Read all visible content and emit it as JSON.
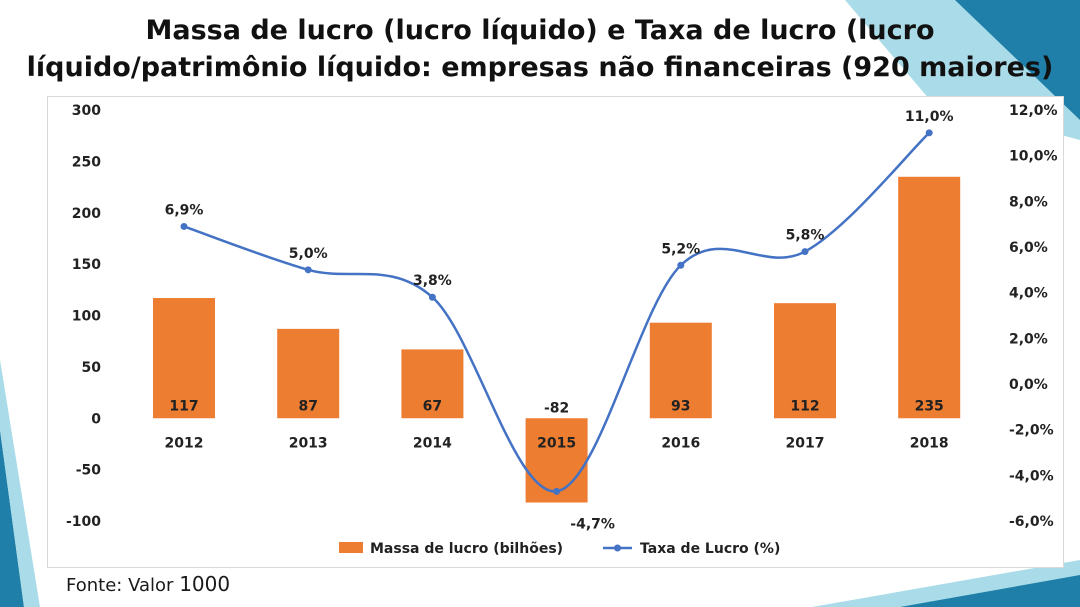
{
  "title_line1": "Massa de lucro (lucro líquido) e Taxa de lucro (lucro",
  "title_line2": "líquido/patrimônio líquido: empresas não financeiras (920 maiores)",
  "source_label": "Fonte:",
  "source_name": "Valor",
  "source_year": "1000",
  "colors": {
    "bar": "#ED7D31",
    "line": "#4472C4",
    "deco_dark": "#1F7FA8",
    "deco_light": "#A9DCE8"
  },
  "chart_data": {
    "type": "bar",
    "categories": [
      "2012",
      "2013",
      "2014",
      "2015",
      "2016",
      "2017",
      "2018"
    ],
    "series": [
      {
        "name": "Massa de lucro (bilhões)",
        "type": "bar",
        "axis": "left",
        "values": [
          117,
          87,
          67,
          -82,
          93,
          112,
          235
        ],
        "labels": [
          "117",
          "87",
          "67",
          "-82",
          "93",
          "112",
          "235"
        ]
      },
      {
        "name": "Taxa de Lucro (%)",
        "type": "line",
        "axis": "right",
        "smooth": true,
        "values": [
          6.9,
          5.0,
          3.8,
          -4.7,
          5.2,
          5.8,
          11.0
        ],
        "labels": [
          "6,9%",
          "5,0%",
          "3,8%",
          "-4,7%",
          "5,2%",
          "5,8%",
          "11,0%"
        ]
      }
    ],
    "y_left": {
      "lim": [
        -100,
        300
      ],
      "ticks": [
        300,
        250,
        200,
        150,
        100,
        50,
        0,
        -50,
        -100
      ],
      "tick_labels": [
        "300",
        "250",
        "200",
        "150",
        "100",
        "50",
        "0",
        "-50",
        "-100"
      ]
    },
    "y_right": {
      "lim": [
        -6,
        12
      ],
      "ticks": [
        12,
        10,
        8,
        6,
        4,
        2,
        0,
        -2,
        -4,
        -6
      ],
      "tick_labels": [
        "12,0%",
        "10,0%",
        "8,0%",
        "6,0%",
        "4,0%",
        "2,0%",
        "0,0%",
        "-2,0%",
        "-4,0%",
        "-6,0%"
      ]
    },
    "grid": false,
    "legend_position": "bottom"
  }
}
